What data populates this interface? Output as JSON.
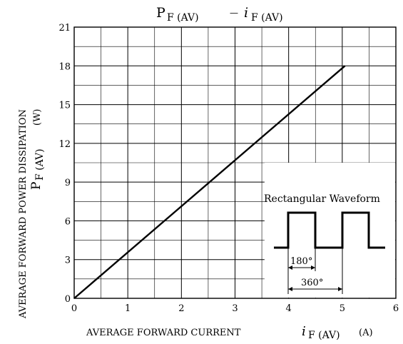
{
  "chart_data": {
    "type": "line",
    "title": {
      "main": "P",
      "main_sub": "F (AV)",
      "sep": "—",
      "second": "i",
      "second_sub": "F (AV)"
    },
    "xlabel": {
      "text": "AVERAGE FORWARD CURRENT",
      "sym": "i",
      "sym_sub": "F (AV)",
      "unit": "(A)"
    },
    "ylabel": {
      "line1": "AVERAGE FORWARD POWER DISSIPATION",
      "sym": "P",
      "sym_sub": "F (AV)",
      "unit": "(W)"
    },
    "xlim": [
      0,
      6
    ],
    "ylim": [
      0,
      21
    ],
    "x_ticks": [
      0,
      1,
      2,
      3,
      4,
      5,
      6
    ],
    "y_ticks": [
      0,
      3,
      6,
      9,
      12,
      15,
      18,
      21
    ],
    "grid": true,
    "x_minor": 0.5,
    "y_minor": 1.5,
    "series": [
      {
        "x": [
          0,
          5.05
        ],
        "y": [
          0,
          18
        ]
      }
    ],
    "inset": {
      "title": "Rectangular Waveform",
      "angle1": "180°",
      "angle2": "360°"
    }
  }
}
